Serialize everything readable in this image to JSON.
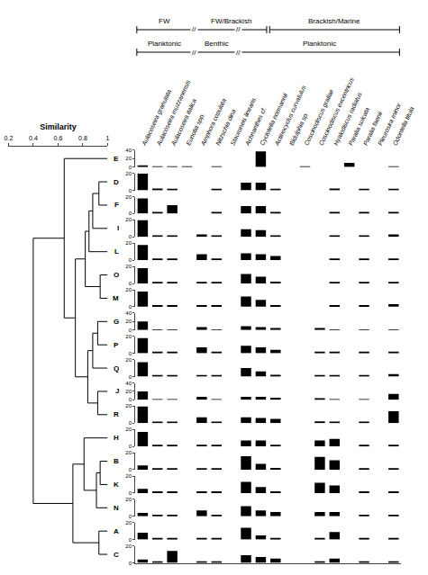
{
  "chart_data": {
    "type": "bar",
    "color": "#000000",
    "categories": [
      "Aulacoseira granulata",
      "Aulacoseira muzzanensis",
      "Aulacoseira italica",
      "Eunotia spp.",
      "Amphora copulata",
      "Nitzschia dina",
      "Stauroneis linearis",
      "Achnanthes cf.",
      "Cyclotella normannii",
      "Actinocyclus curvatulus",
      "Bidulphia sp.",
      "Coscinodiscus grallae",
      "Coscinodiscus excentricus",
      "Hyalodiscus radiatus",
      "Paralia sulcata",
      "Paralia faenii",
      "Pleurosira minor",
      "Odontella titula"
    ],
    "panels": [
      {
        "name": "E",
        "ylim": [
          0,
          40
        ],
        "yticks": [
          0,
          20,
          40
        ],
        "values": [
          2,
          1,
          1,
          1,
          0,
          1,
          0,
          0,
          37,
          0,
          0,
          1,
          0,
          0,
          10,
          0,
          0,
          1
        ]
      },
      {
        "name": "D",
        "ylim": [
          0,
          20
        ],
        "yticks": [
          0,
          20
        ],
        "values": [
          20,
          2,
          1,
          0,
          0,
          1,
          0,
          9,
          9,
          1,
          0,
          0,
          0,
          2,
          0,
          1,
          0,
          1
        ]
      },
      {
        "name": "F",
        "ylim": [
          0,
          20
        ],
        "yticks": [
          0,
          20
        ],
        "values": [
          18,
          1,
          10,
          0,
          0,
          1,
          0,
          9,
          9,
          1,
          0,
          0,
          0,
          2,
          0,
          1,
          0,
          1
        ]
      },
      {
        "name": "I",
        "ylim": [
          0,
          20
        ],
        "yticks": [
          0,
          20
        ],
        "values": [
          20,
          1,
          1,
          0,
          3,
          1,
          0,
          9,
          8,
          1,
          0,
          0,
          0,
          1,
          0,
          1,
          0,
          3
        ]
      },
      {
        "name": "L",
        "ylim": [
          0,
          20
        ],
        "yticks": [
          0,
          20
        ],
        "values": [
          18,
          1,
          1,
          0,
          7,
          1,
          0,
          8,
          7,
          5,
          0,
          0,
          0,
          1,
          0,
          1,
          0,
          1
        ]
      },
      {
        "name": "O",
        "ylim": [
          0,
          20
        ],
        "yticks": [
          0,
          20
        ],
        "values": [
          18,
          1,
          1,
          0,
          1,
          1,
          0,
          11,
          8,
          2,
          0,
          0,
          0,
          1,
          0,
          1,
          0,
          1
        ]
      },
      {
        "name": "M",
        "ylim": [
          0,
          20
        ],
        "yticks": [
          0,
          20
        ],
        "values": [
          18,
          1,
          1,
          0,
          1,
          1,
          0,
          12,
          8,
          2,
          0,
          0,
          0,
          1,
          0,
          1,
          0,
          3
        ]
      },
      {
        "name": "G",
        "ylim": [
          0,
          40
        ],
        "yticks": [
          0,
          20,
          40
        ],
        "values": [
          20,
          1,
          1,
          0,
          7,
          1,
          0,
          9,
          7,
          5,
          0,
          0,
          5,
          1,
          0,
          1,
          0,
          1
        ]
      },
      {
        "name": "P",
        "ylim": [
          0,
          20
        ],
        "yticks": [
          0,
          20
        ],
        "values": [
          18,
          1,
          1,
          0,
          7,
          1,
          0,
          9,
          7,
          4,
          0,
          0,
          1,
          1,
          0,
          1,
          0,
          1
        ]
      },
      {
        "name": "Q",
        "ylim": [
          0,
          20
        ],
        "yticks": [
          0,
          20
        ],
        "values": [
          17,
          1,
          1,
          0,
          1,
          1,
          0,
          10,
          6,
          2,
          0,
          0,
          1,
          1,
          0,
          1,
          0,
          3
        ]
      },
      {
        "name": "J",
        "ylim": [
          0,
          40
        ],
        "yticks": [
          0,
          20,
          40
        ],
        "values": [
          20,
          1,
          1,
          0,
          7,
          1,
          0,
          7,
          7,
          5,
          0,
          0,
          2,
          1,
          0,
          1,
          0,
          14
        ]
      },
      {
        "name": "R",
        "ylim": [
          0,
          20
        ],
        "yticks": [
          0,
          20
        ],
        "values": [
          20,
          1,
          1,
          0,
          7,
          1,
          0,
          7,
          6,
          5,
          0,
          0,
          2,
          1,
          0,
          1,
          0,
          14
        ]
      },
      {
        "name": "H",
        "ylim": [
          0,
          20
        ],
        "yticks": [
          0,
          20
        ],
        "values": [
          17,
          1,
          1,
          0,
          1,
          1,
          0,
          7,
          7,
          1,
          0,
          0,
          7,
          9,
          0,
          1,
          0,
          1
        ]
      },
      {
        "name": "B",
        "ylim": [
          0,
          20
        ],
        "yticks": [
          0,
          20
        ],
        "values": [
          5,
          1,
          1,
          0,
          1,
          1,
          0,
          16,
          7,
          2,
          0,
          0,
          15,
          11,
          0,
          1,
          0,
          1
        ]
      },
      {
        "name": "K",
        "ylim": [
          0,
          20
        ],
        "yticks": [
          0,
          20
        ],
        "values": [
          5,
          1,
          1,
          0,
          1,
          1,
          0,
          13,
          7,
          2,
          0,
          0,
          12,
          9,
          0,
          1,
          0,
          1
        ]
      },
      {
        "name": "N",
        "ylim": [
          0,
          20
        ],
        "yticks": [
          0,
          20
        ],
        "values": [
          4,
          1,
          1,
          0,
          7,
          1,
          0,
          12,
          7,
          5,
          0,
          0,
          5,
          5,
          0,
          1,
          0,
          1
        ]
      },
      {
        "name": "A",
        "ylim": [
          0,
          20
        ],
        "yticks": [
          0,
          20
        ],
        "values": [
          8,
          1,
          1,
          0,
          1,
          1,
          0,
          14,
          5,
          2,
          0,
          0,
          1,
          9,
          0,
          1,
          0,
          1
        ]
      },
      {
        "name": "C",
        "ylim": [
          0,
          20
        ],
        "yticks": [
          0,
          20
        ],
        "values": [
          4,
          1,
          14,
          0,
          1,
          1,
          0,
          9,
          7,
          5,
          0,
          0,
          1,
          5,
          0,
          1,
          0,
          1
        ]
      }
    ],
    "header_rows": [
      [
        {
          "label": "FW",
          "first": "Aulacoseira granulata",
          "last": "Eunotia spp."
        },
        {
          "label": "FW/Brackish",
          "first": "Amphora copulata",
          "last": "Cyclotella normannii"
        },
        {
          "label": "Brackish/Marine",
          "first": "Actinocyclus curvatulus",
          "last": "Odontella titula"
        }
      ],
      [
        {
          "label": "Planktonic",
          "first": "Aulacoseira granulata",
          "last": "Eunotia spp."
        },
        {
          "label": "Benthic",
          "first": "Amphora copulata",
          "last": "Stauroneis linearis"
        },
        {
          "label": "Planktonic",
          "first": "Achnanthes cf.",
          "last": "Odontella titula"
        }
      ]
    ],
    "break_mark": "//",
    "dendrogram": {
      "title": "Similarity",
      "xlim": [
        0.2,
        1
      ],
      "xticks": [
        0.2,
        0.4,
        0.6,
        0.8,
        1
      ],
      "merges": [
        {
          "a": "D",
          "b": "F",
          "similarity": 0.93
        },
        {
          "a": 0,
          "b": "I",
          "similarity": 0.88
        },
        {
          "a": 1,
          "b": "L",
          "similarity": 0.85
        },
        {
          "a": "O",
          "b": "M",
          "similarity": 0.94
        },
        {
          "a": 2,
          "b": 3,
          "similarity": 0.82
        },
        {
          "a": "G",
          "b": "P",
          "similarity": 0.92
        },
        {
          "a": 5,
          "b": "Q",
          "similarity": 0.88
        },
        {
          "a": "J",
          "b": "R",
          "similarity": 0.92
        },
        {
          "a": 6,
          "b": 7,
          "similarity": 0.84
        },
        {
          "a": 4,
          "b": 8,
          "similarity": 0.74
        },
        {
          "a": "E",
          "b": 9,
          "similarity": 0.65
        },
        {
          "a": "B",
          "b": "K",
          "similarity": 0.94
        },
        {
          "a": 11,
          "b": "N",
          "similarity": 0.91
        },
        {
          "a": "H",
          "b": 12,
          "similarity": 0.81
        },
        {
          "a": "A",
          "b": "C",
          "similarity": 0.93
        },
        {
          "a": 13,
          "b": 14,
          "similarity": 0.72
        },
        {
          "a": 10,
          "b": 15,
          "similarity": 0.4
        }
      ]
    }
  }
}
